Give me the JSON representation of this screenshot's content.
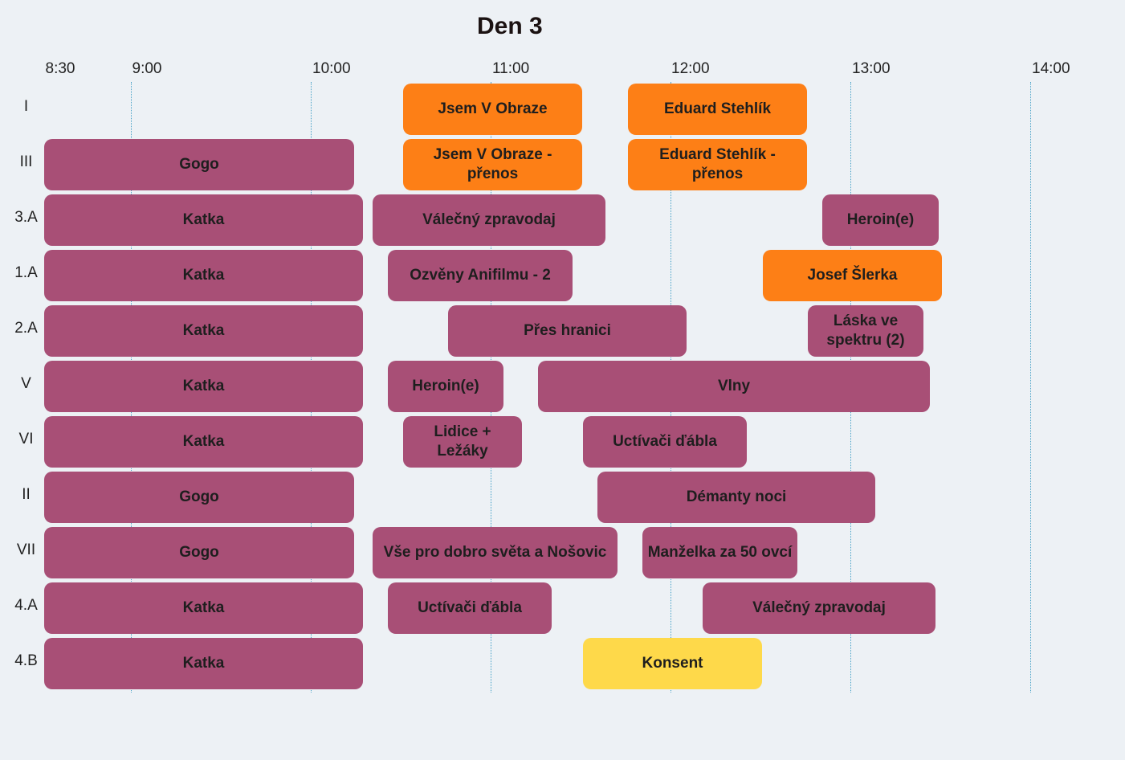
{
  "title": "Den 3",
  "time_ticks": [
    "8:30",
    "9:00",
    "10:00",
    "11:00",
    "12:00",
    "13:00",
    "14:00"
  ],
  "rows": [
    "I",
    "III",
    "3.A",
    "1.A",
    "2.A",
    "V",
    "VI",
    "II",
    "VII",
    "4.A",
    "4.B"
  ],
  "colors": {
    "purple": "#a84f76",
    "orange": "#fd7f16",
    "yellow": "#fed94a",
    "background": "#edf1f5"
  },
  "events": [
    {
      "row": "I",
      "label": "Jsem V Obraze",
      "color": "orange"
    },
    {
      "row": "I",
      "label": "Eduard Stehlík",
      "color": "orange"
    },
    {
      "row": "III",
      "label": "Gogo",
      "color": "purple"
    },
    {
      "row": "III",
      "label": "Jsem V Obraze - přenos",
      "color": "orange"
    },
    {
      "row": "III",
      "label": "Eduard Stehlík - přenos",
      "color": "orange"
    },
    {
      "row": "3.A",
      "label": "Katka",
      "color": "purple"
    },
    {
      "row": "3.A",
      "label": "Válečný zpravodaj",
      "color": "purple"
    },
    {
      "row": "3.A",
      "label": "Heroin(e)",
      "color": "purple"
    },
    {
      "row": "1.A",
      "label": "Katka",
      "color": "purple"
    },
    {
      "row": "1.A",
      "label": "Ozvěny Anifilmu - 2",
      "color": "purple"
    },
    {
      "row": "1.A",
      "label": "Josef Šlerka",
      "color": "orange"
    },
    {
      "row": "2.A",
      "label": "Katka",
      "color": "purple"
    },
    {
      "row": "2.A",
      "label": "Přes hranici",
      "color": "purple"
    },
    {
      "row": "2.A",
      "label": "Láska ve spektru (2)",
      "color": "purple"
    },
    {
      "row": "V",
      "label": "Katka",
      "color": "purple"
    },
    {
      "row": "V",
      "label": "Heroin(e)",
      "color": "purple"
    },
    {
      "row": "V",
      "label": "Vlny",
      "color": "purple"
    },
    {
      "row": "VI",
      "label": "Katka",
      "color": "purple"
    },
    {
      "row": "VI",
      "label": "Lidice + Ležáky",
      "color": "purple"
    },
    {
      "row": "VI",
      "label": "Uctívači ďábla",
      "color": "purple"
    },
    {
      "row": "II",
      "label": "Gogo",
      "color": "purple"
    },
    {
      "row": "II",
      "label": "Démanty noci",
      "color": "purple"
    },
    {
      "row": "VII",
      "label": "Gogo",
      "color": "purple"
    },
    {
      "row": "VII",
      "label": "Vše pro dobro světa a Nošovic",
      "color": "purple"
    },
    {
      "row": "VII",
      "label": "Manželka za 50 ovcí",
      "color": "purple"
    },
    {
      "row": "4.A",
      "label": "Katka",
      "color": "purple"
    },
    {
      "row": "4.A",
      "label": "Uctívači ďábla",
      "color": "purple"
    },
    {
      "row": "4.A",
      "label": "Válečný zpravodaj",
      "color": "purple"
    },
    {
      "row": "4.B",
      "label": "Katka",
      "color": "purple"
    },
    {
      "row": "4.B",
      "label": "Konsent",
      "color": "yellow"
    }
  ]
}
